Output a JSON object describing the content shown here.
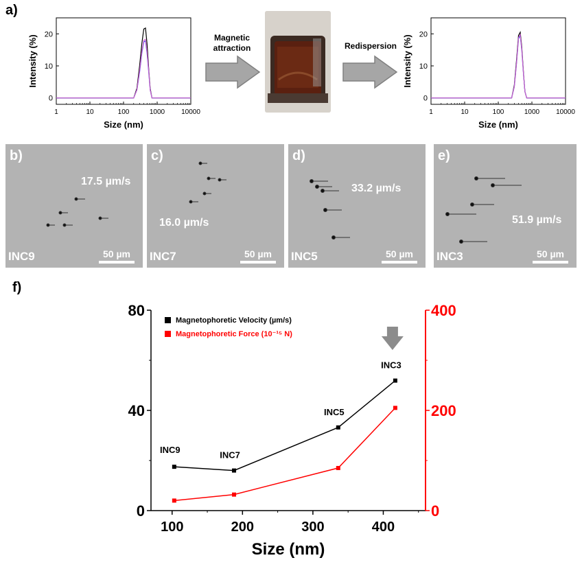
{
  "panels": {
    "a": "a)",
    "b": "b)",
    "c": "c)",
    "d": "d)",
    "e": "e)",
    "f": "f)"
  },
  "steps": {
    "magnetic": [
      "Magnetic",
      "attraction"
    ],
    "redispersion": "Redispersion"
  },
  "micrographs": [
    {
      "letter": "b)",
      "name": "INC9",
      "velocity": "17.5 µm/s",
      "scale": "50 µm"
    },
    {
      "letter": "c)",
      "name": "INC7",
      "velocity": "16.0 µm/s",
      "scale": "50 µm"
    },
    {
      "letter": "d)",
      "name": "INC5",
      "velocity": "33.2 µm/s",
      "scale": "50 µm"
    },
    {
      "letter": "e)",
      "name": "INC3",
      "velocity": "51.9 µm/s",
      "scale": "50 µm"
    }
  ],
  "colors": {
    "black_series": "#000000",
    "red_series": "#ff0000",
    "dls_blue": "#3333ff",
    "dls_pink": "#cc66cc",
    "arrow_gray": "#8c8c8c"
  },
  "chart_data": [
    {
      "type": "line",
      "xlabel": "Size (nm)",
      "ylabel": "Intensity (%)",
      "xscale": "log",
      "xlim": [
        1,
        10000
      ],
      "ylim": [
        -2,
        25
      ],
      "x_ticks": [
        "1",
        "10",
        "100",
        "1000",
        "10000"
      ],
      "y_ticks": [
        "0",
        "10",
        "20"
      ],
      "x": [
        1,
        200,
        250,
        300,
        350,
        400,
        450,
        500,
        560,
        620,
        700,
        10000
      ],
      "series": [
        {
          "color": "#000000",
          "values": [
            0,
            0,
            3,
            10,
            17,
            21.5,
            21.8,
            17,
            9,
            3,
            0,
            0
          ]
        },
        {
          "color": "#3333ff",
          "values": [
            0,
            0,
            2.5,
            8,
            14,
            17.5,
            17.8,
            14,
            8,
            2.5,
            0,
            0
          ]
        },
        {
          "color": "#cc66cc",
          "values": [
            0,
            0,
            2.5,
            8.5,
            14.5,
            18,
            18.3,
            14.5,
            8.5,
            2.5,
            0,
            0
          ]
        }
      ]
    },
    {
      "type": "line",
      "xlabel": "Size (nm)",
      "ylabel": "Intensity (%)",
      "xscale": "log",
      "xlim": [
        1,
        10000
      ],
      "ylim": [
        -2,
        25
      ],
      "x_ticks": [
        "1",
        "10",
        "100",
        "1000",
        "10000"
      ],
      "y_ticks": [
        "0",
        "10",
        "20"
      ],
      "x": [
        1,
        250,
        300,
        350,
        400,
        450,
        500,
        560,
        620,
        700,
        10000
      ],
      "series": [
        {
          "color": "#000000",
          "values": [
            0,
            0,
            4,
            12,
            19.5,
            20.5,
            16,
            8,
            2,
            0,
            0
          ]
        },
        {
          "color": "#3333ff",
          "values": [
            0,
            0,
            3.5,
            11,
            18.5,
            19.5,
            15,
            7.5,
            2,
            0,
            0
          ]
        },
        {
          "color": "#cc66cc",
          "values": [
            0,
            0,
            3.5,
            11,
            18.8,
            19.8,
            15.3,
            7.6,
            2,
            0,
            0
          ]
        }
      ]
    },
    {
      "type": "line",
      "xlabel": "Size (nm)",
      "xlim": [
        70,
        460
      ],
      "x_ticks": [
        "100",
        "200",
        "300",
        "400"
      ],
      "y_left_lim": [
        0,
        80
      ],
      "y_left_ticks": [
        "0",
        "40",
        "80"
      ],
      "y_right_lim": [
        0,
        400
      ],
      "y_right_ticks": [
        "0",
        "200",
        "400"
      ],
      "x": [
        103,
        188,
        336,
        417
      ],
      "point_labels": [
        "INC9",
        "INC7",
        "INC5",
        "INC3"
      ],
      "series": [
        {
          "name": "Magnetophoretic Velocity (µm/s)",
          "axis": "left",
          "color": "#000000",
          "values": [
            17.5,
            16.0,
            33.2,
            51.9
          ]
        },
        {
          "name": "Magnetophoretic Force (10⁻¹⁵ N)",
          "axis": "right",
          "color": "#ff0000",
          "values": [
            20,
            32,
            85,
            205
          ]
        }
      ]
    }
  ]
}
